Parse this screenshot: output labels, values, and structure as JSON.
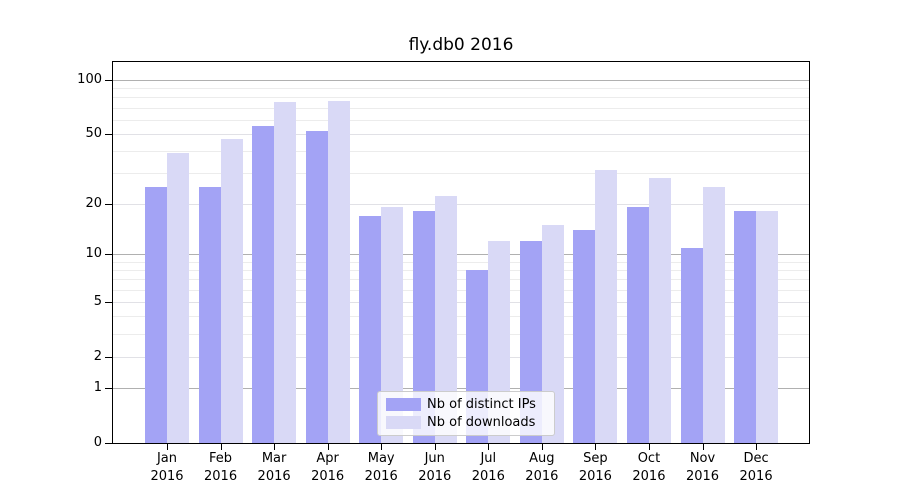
{
  "chart_data": {
    "type": "bar",
    "title": "fly.db0 2016",
    "categories": [
      "Jan",
      "Feb",
      "Mar",
      "Apr",
      "May",
      "Jun",
      "Jul",
      "Aug",
      "Sep",
      "Oct",
      "Nov",
      "Dec"
    ],
    "x_year_label": "2016",
    "series": [
      {
        "name": "Nb of distinct IPs",
        "color": "#a3a3f5",
        "values": [
          25,
          25,
          55,
          52,
          17,
          18,
          8,
          12,
          14,
          19,
          11,
          18
        ]
      },
      {
        "name": "Nb of downloads",
        "color": "#d9d9f6",
        "values": [
          39,
          47,
          75,
          76,
          19,
          22,
          12,
          15,
          31,
          28,
          25,
          18
        ]
      }
    ],
    "yscale": "log1p",
    "ylim": [
      0,
      126
    ],
    "ytick_values": [
      0,
      1,
      2,
      5,
      10,
      20,
      50,
      100
    ],
    "ytick_labels": [
      "0",
      "1",
      "2",
      "5",
      "10",
      "20",
      "50",
      "100"
    ],
    "gridlines": {
      "major_values": [
        1,
        10,
        100
      ],
      "submajor_values": [
        2,
        5,
        20,
        50
      ],
      "minor_values": [
        3,
        4,
        6,
        7,
        8,
        9,
        30,
        40,
        60,
        70,
        80,
        90
      ]
    },
    "legend": {
      "entries": [
        "Nb of distinct IPs",
        "Nb of downloads"
      ],
      "position": "lower center"
    },
    "grid": true
  },
  "colors": {
    "background": "#ffffff",
    "spine": "#000000",
    "major_grid": "#b0b0b0",
    "minor_grid": "#ececec",
    "series1": "#a3a3f5",
    "series2": "#d9d9f6"
  }
}
